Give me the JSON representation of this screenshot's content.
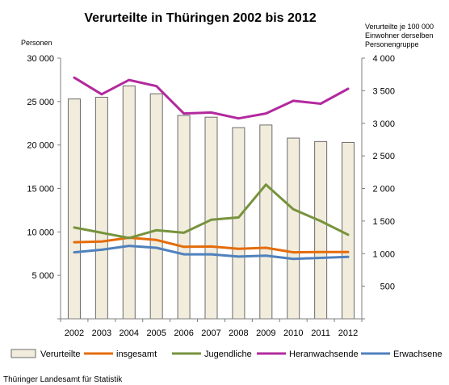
{
  "chart_data": {
    "type": "bar",
    "title": "Verurteilte in Thüringen 2002 bis 2012",
    "ylabel": "Personen",
    "y2label_lines": [
      "Verurteilte je 100 000",
      "Einwohner  derselben",
      "Personengruppe"
    ],
    "source": "Thüringer Landesamt für Statistik",
    "categories": [
      "2002",
      "2003",
      "2004",
      "2005",
      "2006",
      "2007",
      "2008",
      "2009",
      "2010",
      "2011",
      "2012"
    ],
    "ylim": [
      0,
      30000
    ],
    "y_ticks": [
      "",
      "5 000",
      "10 000",
      "15 000",
      "20 000",
      "25 000",
      "30 000"
    ],
    "y2lim": [
      0,
      4000
    ],
    "y2_ticks": [
      "",
      "500",
      "1 000",
      "1 500",
      "2 000",
      "2 500",
      "3 000",
      "3 500",
      "4 000"
    ],
    "grid": false,
    "legend_position": "bottom",
    "bar_series": {
      "name": "Verurteilte",
      "axis": "left",
      "color": "#f1ecdc",
      "values": [
        25300,
        25500,
        26800,
        25900,
        23400,
        23200,
        22000,
        22300,
        20800,
        20400,
        20300
      ]
    },
    "line_series": [
      {
        "name": "insgesamt",
        "axis": "right",
        "color": "#e46c0a",
        "values": [
          1175,
          1185,
          1245,
          1210,
          1105,
          1110,
          1075,
          1090,
          1020,
          1025,
          1025
        ]
      },
      {
        "name": "Jugendliche",
        "axis": "right",
        "color": "#77933c",
        "values": [
          1400,
          1320,
          1240,
          1360,
          1320,
          1520,
          1555,
          2060,
          1680,
          1500,
          1290
        ]
      },
      {
        "name": "Heranwachsende",
        "axis": "right",
        "color": "#b3299e",
        "values": [
          3700,
          3445,
          3665,
          3570,
          3150,
          3165,
          3075,
          3150,
          3345,
          3300,
          3530
        ]
      },
      {
        "name": "Erwachsene",
        "axis": "right",
        "color": "#4f81bd",
        "values": [
          1020,
          1060,
          1120,
          1090,
          990,
          990,
          955,
          970,
          920,
          935,
          950
        ]
      }
    ]
  }
}
